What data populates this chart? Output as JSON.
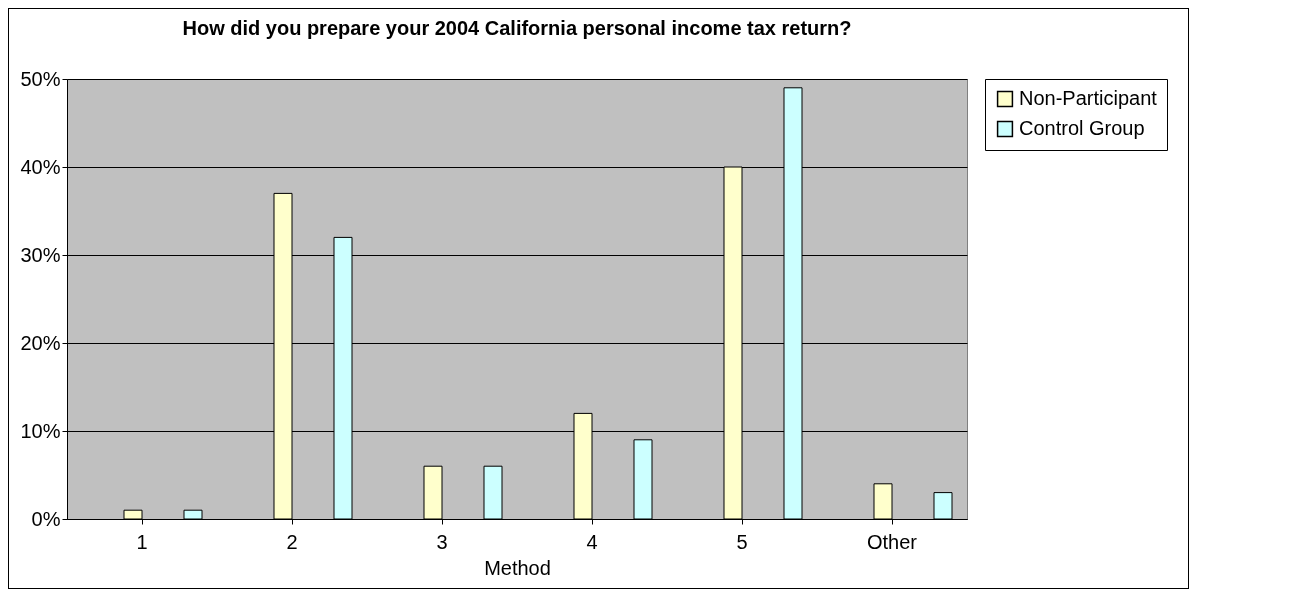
{
  "chart_data": {
    "type": "bar",
    "title": "How did you prepare your 2004 California personal income tax return?",
    "xlabel": "Method",
    "categories": [
      "1",
      "2",
      "3",
      "4",
      "5",
      "Other"
    ],
    "series": [
      {
        "name": "Non-Participant",
        "color": "#ffffcc",
        "values": [
          1,
          37,
          6,
          12,
          40,
          4
        ]
      },
      {
        "name": "Control Group",
        "color": "#ccffff",
        "values": [
          1,
          32,
          6,
          9,
          49,
          3
        ]
      }
    ],
    "ylim": [
      0,
      50
    ],
    "yticks": [
      {
        "value": 0,
        "label": "0%"
      },
      {
        "value": 10,
        "label": "10%"
      },
      {
        "value": 20,
        "label": "20%"
      },
      {
        "value": 30,
        "label": "30%"
      },
      {
        "value": 40,
        "label": "40%"
      },
      {
        "value": 50,
        "label": "50%"
      }
    ],
    "grid": "y",
    "legend": "right"
  }
}
